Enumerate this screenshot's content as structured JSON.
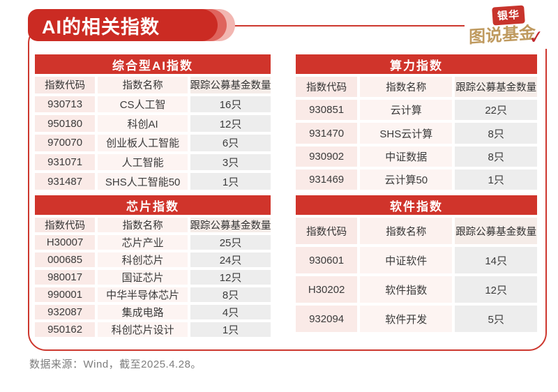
{
  "page": {
    "title": "AI的相关指数",
    "footer": "数据来源：Wind，截至2025.4.28。"
  },
  "logo": {
    "line1": "银华",
    "line2": "图说基金",
    "checkmark": "✓"
  },
  "columns": [
    "指数代码",
    "指数名称",
    "跟踪公募基金数量"
  ],
  "column_keys": [
    "index-code",
    "index-name",
    "fund-count"
  ],
  "tables": [
    {
      "id": "comprehensive-ai",
      "title": "综合型AI指数",
      "rows": [
        [
          "930713",
          "CS人工智",
          "16只"
        ],
        [
          "950180",
          "科创AI",
          "12只"
        ],
        [
          "970070",
          "创业板人工智能",
          "6只"
        ],
        [
          "931071",
          "人工智能",
          "3只"
        ],
        [
          "931487",
          "SHS人工智能50",
          "1只"
        ]
      ]
    },
    {
      "id": "computing-power",
      "title": "算力指数",
      "rows": [
        [
          "930851",
          "云计算",
          "22只"
        ],
        [
          "931470",
          "SHS云计算",
          "8只"
        ],
        [
          "930902",
          "中证数据",
          "8只"
        ],
        [
          "931469",
          "云计算50",
          "1只"
        ]
      ]
    },
    {
      "id": "chip",
      "title": "芯片指数",
      "rows": [
        [
          "H30007",
          "芯片产业",
          "25只"
        ],
        [
          "000685",
          "科创芯片",
          "24只"
        ],
        [
          "980017",
          "国证芯片",
          "12只"
        ],
        [
          "990001",
          "中华半导体芯片",
          "8只"
        ],
        [
          "932087",
          "集成电路",
          "4只"
        ],
        [
          "950162",
          "科创芯片设计",
          "1只"
        ]
      ]
    },
    {
      "id": "software",
      "title": "软件指数",
      "rows": [
        [
          "930601",
          "中证软件",
          "14只"
        ],
        [
          "H30202",
          "软件指数",
          "12只"
        ],
        [
          "932094",
          "软件开发",
          "5只"
        ]
      ]
    }
  ],
  "colors": {
    "primary_red": "#d0342b",
    "banner_red": "#cb2b23",
    "frame_red": "#cd372e",
    "banner_shadow_1": "#df645d",
    "banner_shadow_2": "#f2b6b1",
    "cell_pink": "#faeae7",
    "cell_light_pink": "#fdf4f2",
    "cell_gray": "#ededed",
    "logo_gold": "#bf9a5f",
    "text_dark": "#3b3b3b",
    "footer_gray": "#7d7d7d"
  }
}
